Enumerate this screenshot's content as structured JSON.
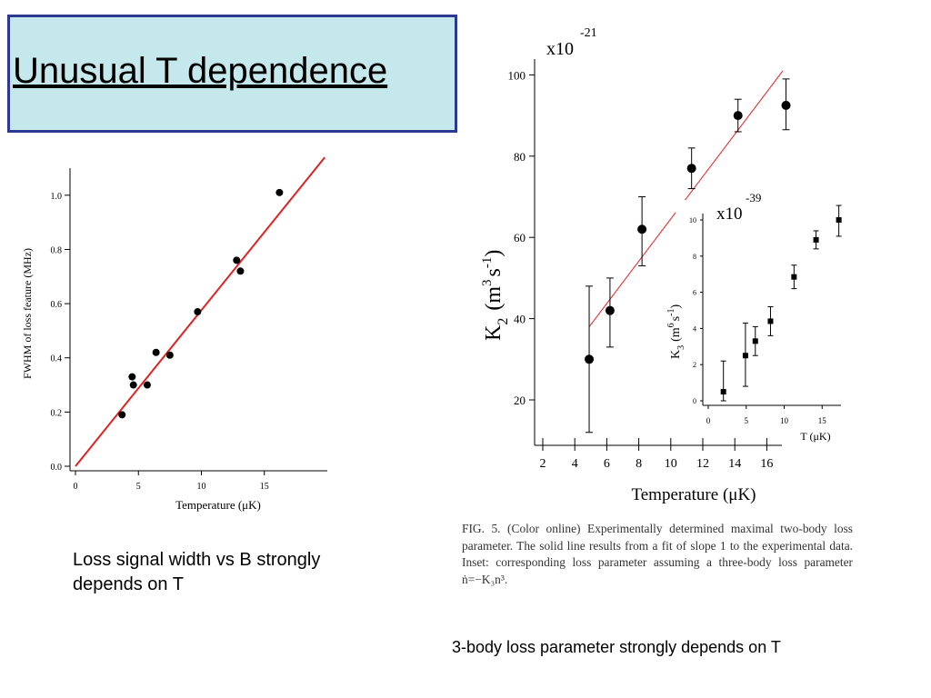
{
  "slide": {
    "title": "Unusual T dependence",
    "caption_left": "Loss signal width vs B strongly depends on T",
    "caption_right": "3-body loss parameter strongly depends on T",
    "fig_caption": "FIG. 5. (Color online) Experimentally determined maximal two-body loss parameter. The solid line results from a fit of slope 1 to the experimental data. Inset: corresponding loss parameter assuming a three-body loss parameter ṅ=−K₃n³."
  },
  "colors": {
    "title_bg": "#c5e8ec",
    "title_border": "#2b3990",
    "fit_line": "#dd2222",
    "marker": "#000000"
  },
  "chart_data": [
    {
      "type": "scatter",
      "xlabel": "Temperature (μK)",
      "ylabel": "FWHM of loss feature (MHz)",
      "xlim": [
        0,
        20
      ],
      "ylim": [
        0,
        1.1
      ],
      "xticks": [
        "0",
        "5",
        "10",
        "15"
      ],
      "yticks": [
        "0.0",
        "0.2",
        "0.4",
        "0.6",
        "0.8",
        "1.0"
      ],
      "series": [
        {
          "points": [
            [
              3.7,
              0.19
            ],
            [
              4.5,
              0.33
            ],
            [
              4.6,
              0.3
            ],
            [
              5.7,
              0.3
            ],
            [
              6.4,
              0.42
            ],
            [
              7.5,
              0.41
            ],
            [
              9.7,
              0.57
            ],
            [
              12.8,
              0.76
            ],
            [
              13.1,
              0.72
            ],
            [
              16.2,
              1.01
            ]
          ]
        }
      ],
      "fit_line": [
        [
          0,
          0.0
        ],
        [
          19.8,
          1.14
        ]
      ]
    },
    {
      "type": "scatter",
      "xlabel": "Temperature (μK)",
      "ylabel_main": "K",
      "ylabel_sub": "2",
      "ylabel_unit": "(m",
      "ylabel_exp1": "3",
      "ylabel_s": "s",
      "ylabel_exp2": "-1",
      "ylabel_close": ")",
      "multiplier_base": "x10",
      "multiplier_exp": "-21",
      "xlim": [
        1,
        18
      ],
      "ylim": [
        10,
        105
      ],
      "xticks": [
        "2",
        "4",
        "6",
        "8",
        "10",
        "12",
        "14",
        "16"
      ],
      "yticks": [
        "20",
        "40",
        "60",
        "80",
        "100"
      ],
      "series": [
        {
          "points": [
            [
              4.9,
              30,
              48,
              12
            ],
            [
              6.2,
              42,
              50,
              33
            ],
            [
              8.2,
              62,
              70,
              53
            ],
            [
              11.3,
              77,
              82,
              72
            ],
            [
              14.2,
              90,
              94,
              86
            ],
            [
              17.2,
              92.5,
              99,
              86.5
            ]
          ]
        }
      ],
      "fit_line": [
        [
          4.9,
          38
        ],
        [
          17.0,
          101
        ]
      ]
    },
    {
      "type": "scatter",
      "inset": true,
      "xlabel": "T (μK)",
      "ylabel_main": "K",
      "ylabel_sub": "3",
      "ylabel_unit": "(m",
      "ylabel_exp1": "6",
      "ylabel_s": "s",
      "ylabel_exp2": "-1",
      "ylabel_close": ")",
      "multiplier_base": "x10",
      "multiplier_exp": "-39",
      "xlim": [
        0,
        18
      ],
      "ylim": [
        0,
        11
      ],
      "xticks": [
        "0",
        "5",
        "10",
        "15"
      ],
      "yticks": [
        "0",
        "2",
        "4",
        "6",
        "8",
        "10"
      ],
      "series": [
        {
          "points": [
            [
              2,
              0.5,
              2.2,
              0
            ],
            [
              4.9,
              2.5,
              4.3,
              0.8
            ],
            [
              6.2,
              3.3,
              4.1,
              2.5
            ],
            [
              8.2,
              4.4,
              5.2,
              3.6
            ],
            [
              11.3,
              6.85,
              7.5,
              6.2
            ],
            [
              14.2,
              8.9,
              9.4,
              8.4
            ],
            [
              17.2,
              10.0,
              10.8,
              9.1
            ]
          ]
        }
      ]
    }
  ]
}
